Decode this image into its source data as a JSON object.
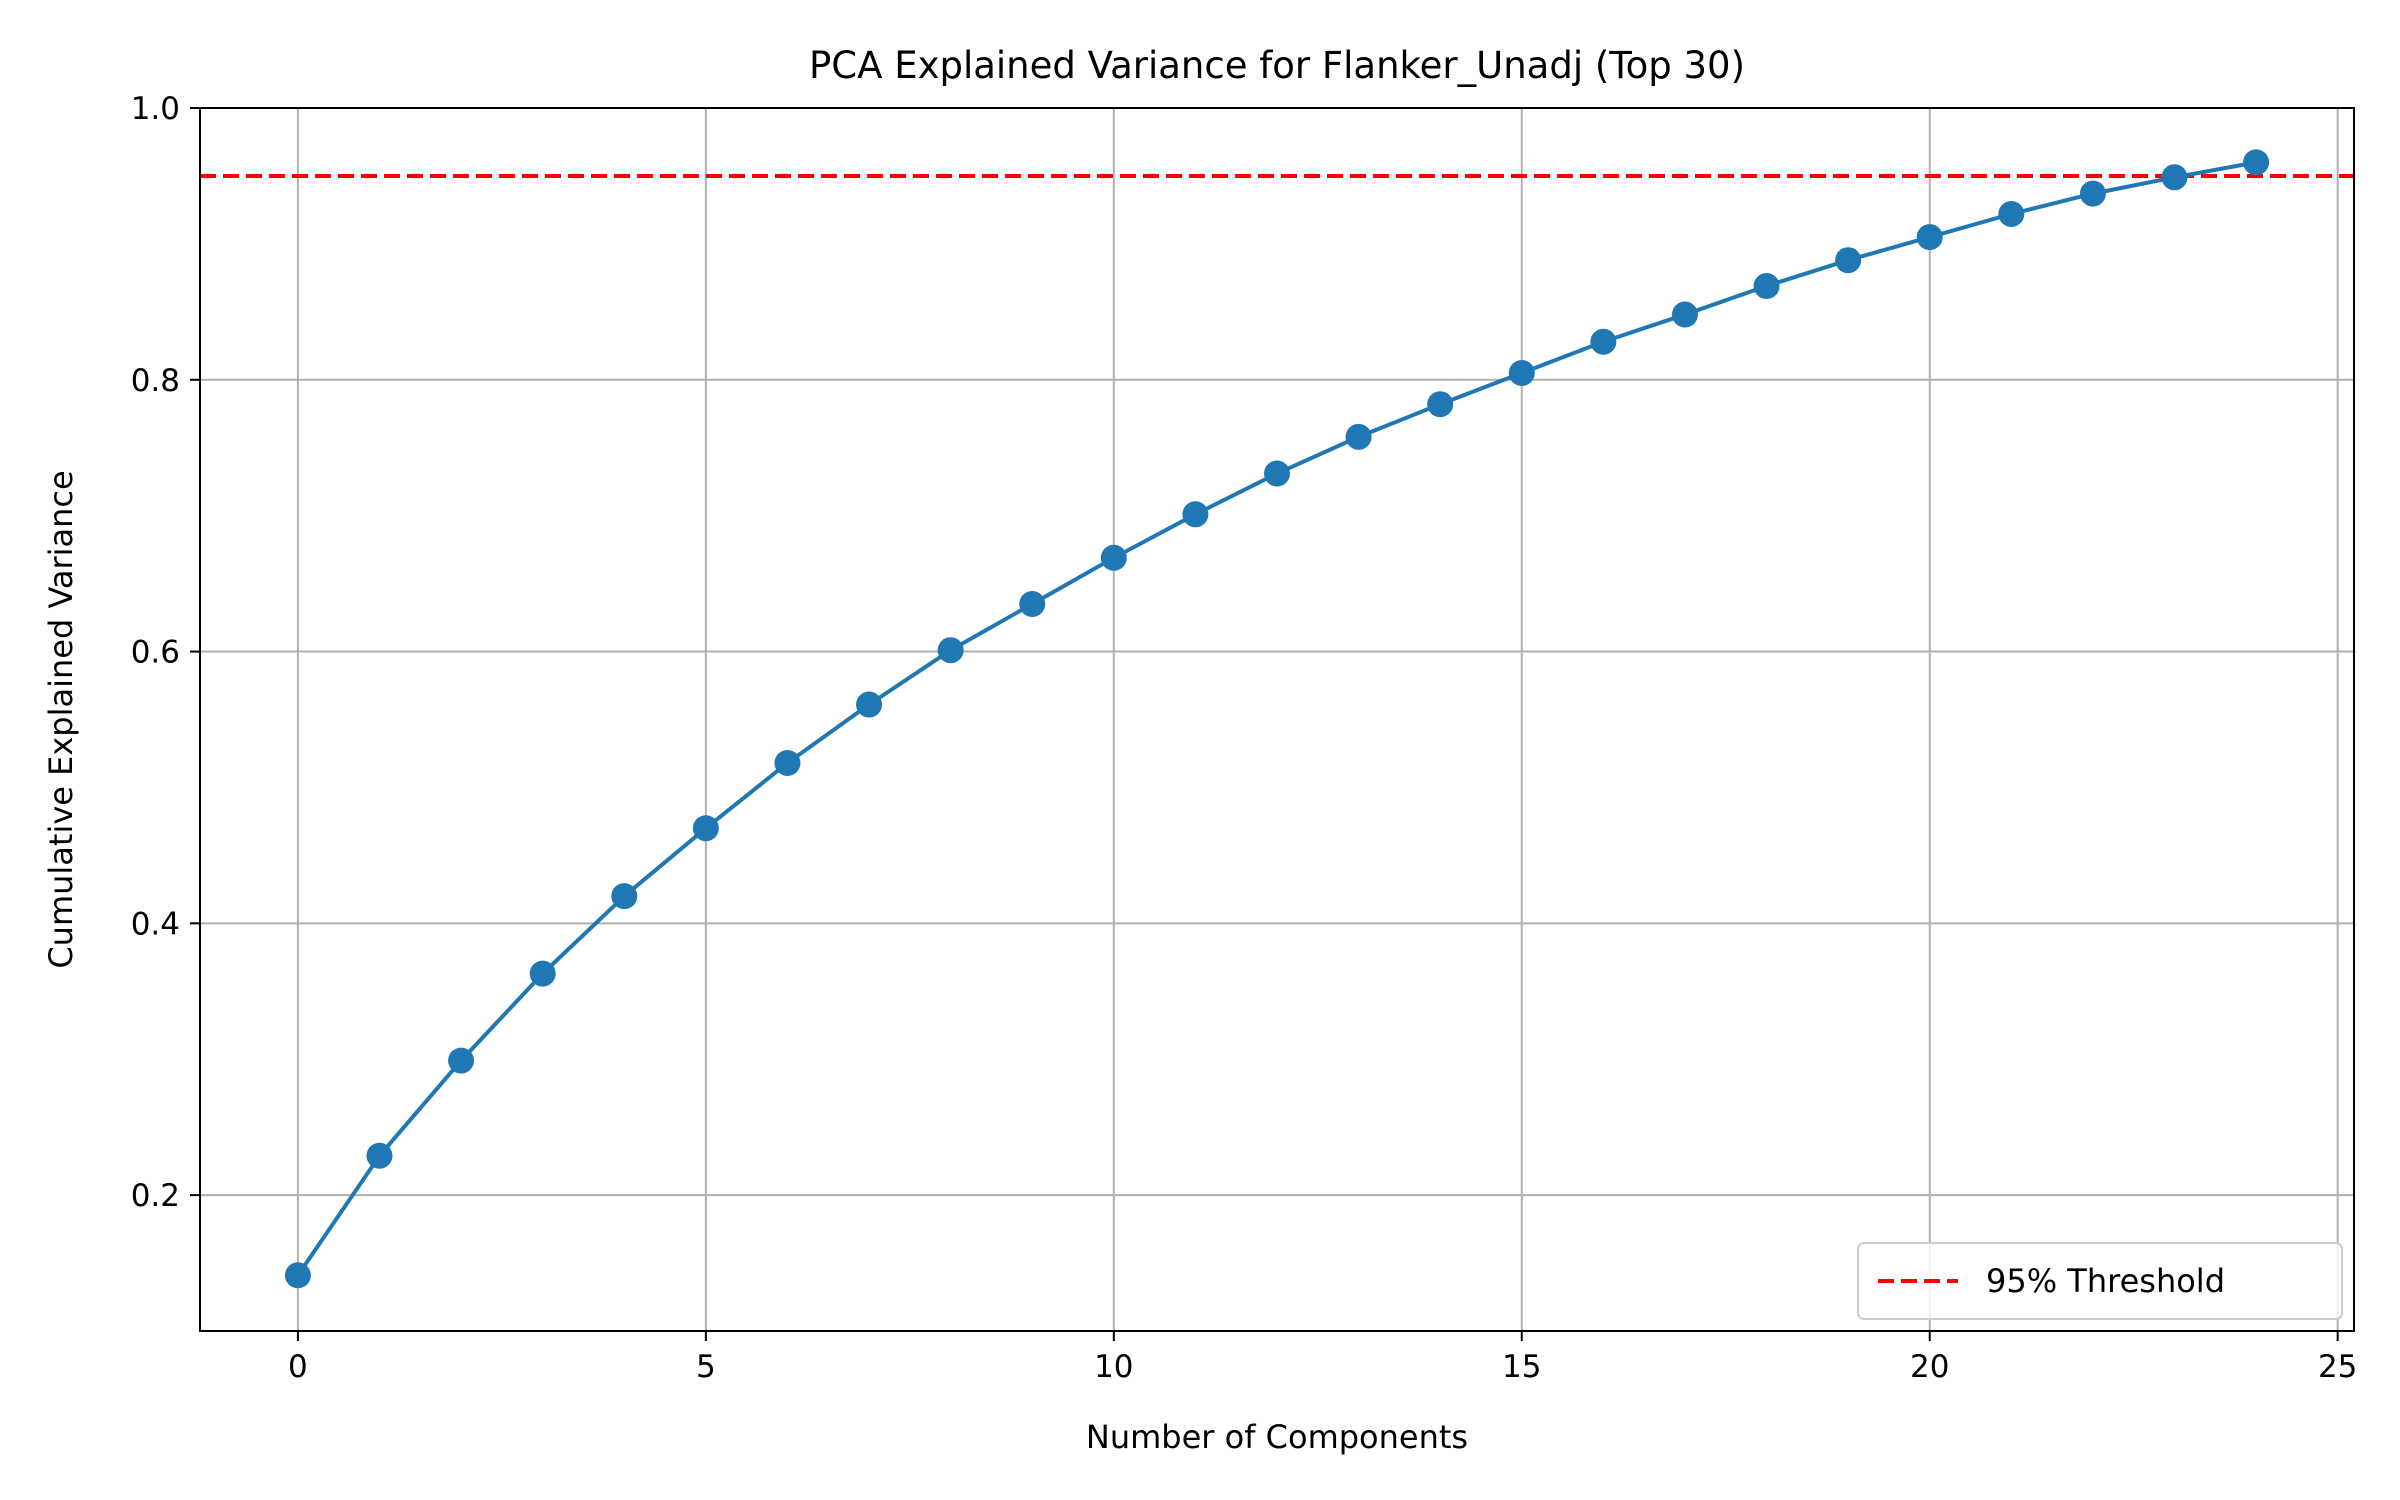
{
  "chart_data": {
    "type": "line",
    "title": "PCA Explained Variance for Flanker_Unadj (Top 30)",
    "xlabel": "Number of Components",
    "ylabel": "Cumulative Explained Variance",
    "x": [
      0,
      1,
      2,
      3,
      4,
      5,
      6,
      7,
      8,
      9,
      10,
      11,
      12,
      13,
      14,
      15,
      16,
      17,
      18,
      19,
      20,
      21,
      22,
      23,
      24
    ],
    "series": [
      {
        "values": [
          0.141,
          0.229,
          0.299,
          0.363,
          0.42,
          0.47,
          0.518,
          0.561,
          0.601,
          0.635,
          0.669,
          0.701,
          0.731,
          0.758,
          0.782,
          0.805,
          0.828,
          0.848,
          0.869,
          0.888,
          0.905,
          0.922,
          0.937,
          0.949,
          0.96
        ],
        "color": "#1f77b4",
        "marker": "circle"
      }
    ],
    "threshold": {
      "y": 0.95,
      "name": "95% Threshold",
      "color": "#ff0000",
      "style": "dashed"
    },
    "xlim": [
      -1.2,
      25.2
    ],
    "ylim": [
      0.1,
      1.0
    ],
    "xticks": [
      0,
      5,
      10,
      15,
      20,
      25
    ],
    "yticks": [
      0.2,
      0.4,
      0.6,
      0.8,
      1.0
    ],
    "ytick_labels": [
      "0.2",
      "0.4",
      "0.6",
      "0.8",
      "1.0"
    ],
    "grid": true,
    "legend_position": "bottom-right"
  }
}
